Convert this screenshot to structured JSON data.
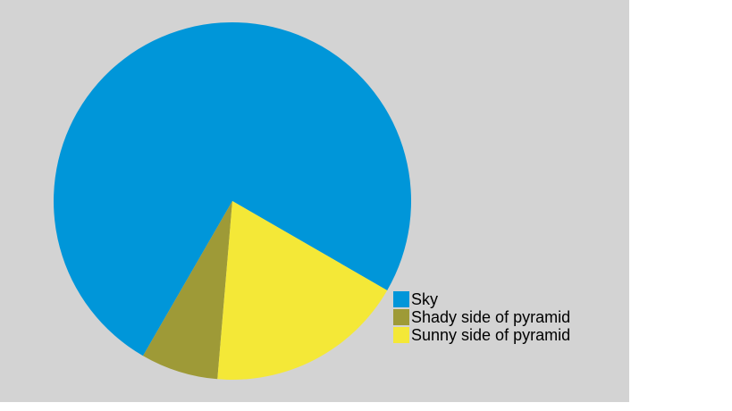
{
  "chart_data": {
    "type": "pie",
    "title": "",
    "categories": [
      "Sky",
      "Shady side of pyramid",
      "Sunny side of pyramid"
    ],
    "values": [
      75,
      7,
      18
    ],
    "colors": [
      "#0096d9",
      "#9e9a37",
      "#f4e837"
    ],
    "start_angle_deg": 30,
    "direction": "counterclockwise",
    "legend_placement": "bottom-right"
  },
  "panel_background": "#d3d3d3"
}
